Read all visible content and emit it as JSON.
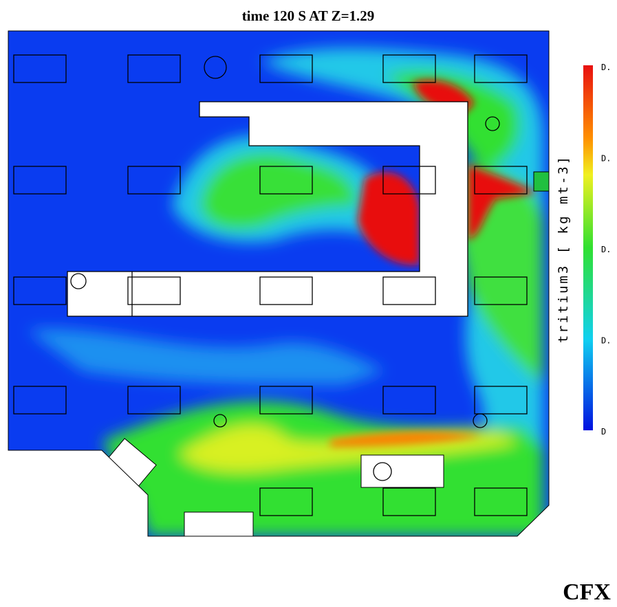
{
  "plot": {
    "title": "time 120 S AT Z=1.29",
    "colorbar": {
      "label": "tritium3 [ kg mt-3]",
      "ticks": [
        "D.",
        "D.",
        "D.",
        "D.",
        "D"
      ]
    },
    "logo": "CFX"
  }
}
